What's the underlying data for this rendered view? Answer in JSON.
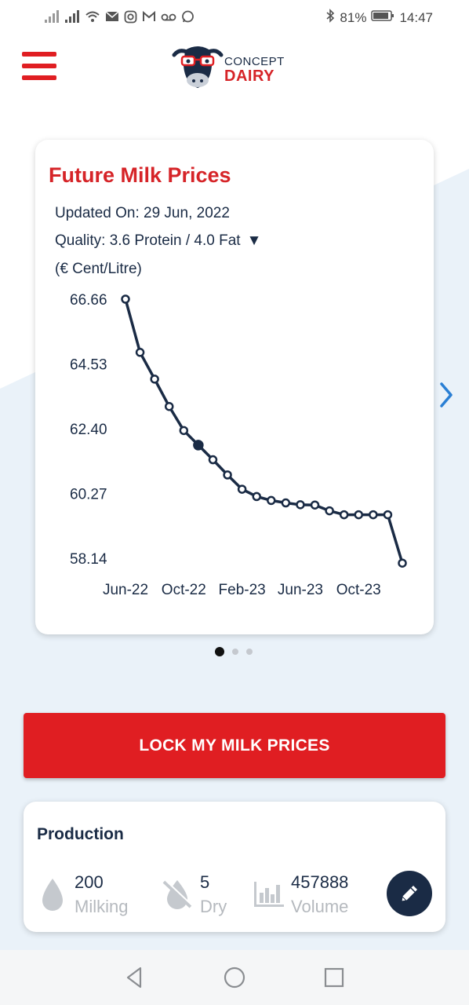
{
  "status_bar": {
    "battery_percent": "81%",
    "time": "14:47"
  },
  "header": {
    "logo_text_line1": "CONCEPT",
    "logo_text_line2": "DAIRY"
  },
  "price_card": {
    "title": "Future Milk Prices",
    "updated_on": "Updated On: 29 Jun, 2022",
    "quality": "Quality: 3.6 Protein / 4.0 Fat",
    "quality_caret": "▼",
    "unit": "(€ Cent/Litre)"
  },
  "chart_data": {
    "type": "line",
    "title": "",
    "xlabel": "",
    "ylabel": "(€ Cent/Litre)",
    "y_ticks": [
      "66.66",
      "64.53",
      "62.40",
      "60.27",
      "58.14"
    ],
    "ylim": [
      58.14,
      66.66
    ],
    "x_ticks": [
      "Jun-22",
      "Oct-22",
      "Feb-23",
      "Jun-23",
      "Oct-23"
    ],
    "x": [
      "Jun-22",
      "Jul-22",
      "Aug-22",
      "Sep-22",
      "Oct-22",
      "Nov-22",
      "Dec-22",
      "Jan-23",
      "Feb-23",
      "Mar-23",
      "Apr-23",
      "May-23",
      "Jun-23",
      "Jul-23",
      "Aug-23",
      "Sep-23",
      "Oct-23",
      "Nov-23",
      "Dec-23",
      "Jan-24"
    ],
    "values": [
      66.66,
      64.91,
      64.03,
      63.13,
      62.34,
      61.86,
      61.38,
      60.88,
      60.41,
      60.17,
      60.04,
      59.96,
      59.9,
      59.89,
      59.7,
      59.57,
      59.57,
      59.57,
      59.57,
      57.98
    ],
    "highlighted_index": 5,
    "grid": false,
    "legend": "none",
    "line_color": "#1a2b45"
  },
  "pagination": {
    "total": 3,
    "active": 0
  },
  "lock_button": {
    "label": "LOCK MY MILK PRICES"
  },
  "production": {
    "title": "Production",
    "stats": [
      {
        "icon": "milk-drop-icon",
        "value": "200",
        "label": "Milking"
      },
      {
        "icon": "no-milk-icon",
        "value": "5",
        "label": "Dry"
      },
      {
        "icon": "bar-chart-icon",
        "value": "457888",
        "label": "Volume"
      }
    ]
  },
  "colors": {
    "brand_red": "#e01e22",
    "brand_navy": "#1a2b45",
    "secondary_text": "#b5b9be"
  }
}
